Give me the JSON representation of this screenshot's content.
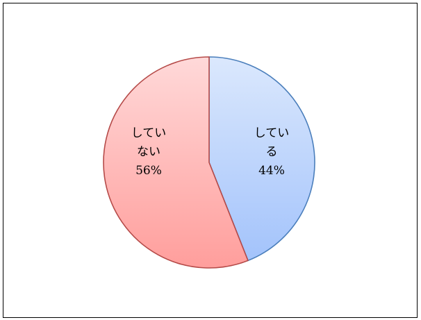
{
  "chart_data": {
    "type": "pie",
    "title": "",
    "start_angle_deg": 0,
    "direction": "clockwise",
    "slices": [
      {
        "name": "している",
        "label_lines": [
          "してい",
          "る",
          "44%"
        ],
        "value": 44,
        "color_top": "#dbe8fd",
        "color_bottom": "#a3c3fb",
        "stroke": "#4a7ebb"
      },
      {
        "name": "していない",
        "label_lines": [
          "してい",
          "ない",
          "56%"
        ],
        "value": 56,
        "color_top": "#ffd9d9",
        "color_bottom": "#ff9e9c",
        "stroke": "#b54a48"
      }
    ],
    "legend": "none"
  }
}
